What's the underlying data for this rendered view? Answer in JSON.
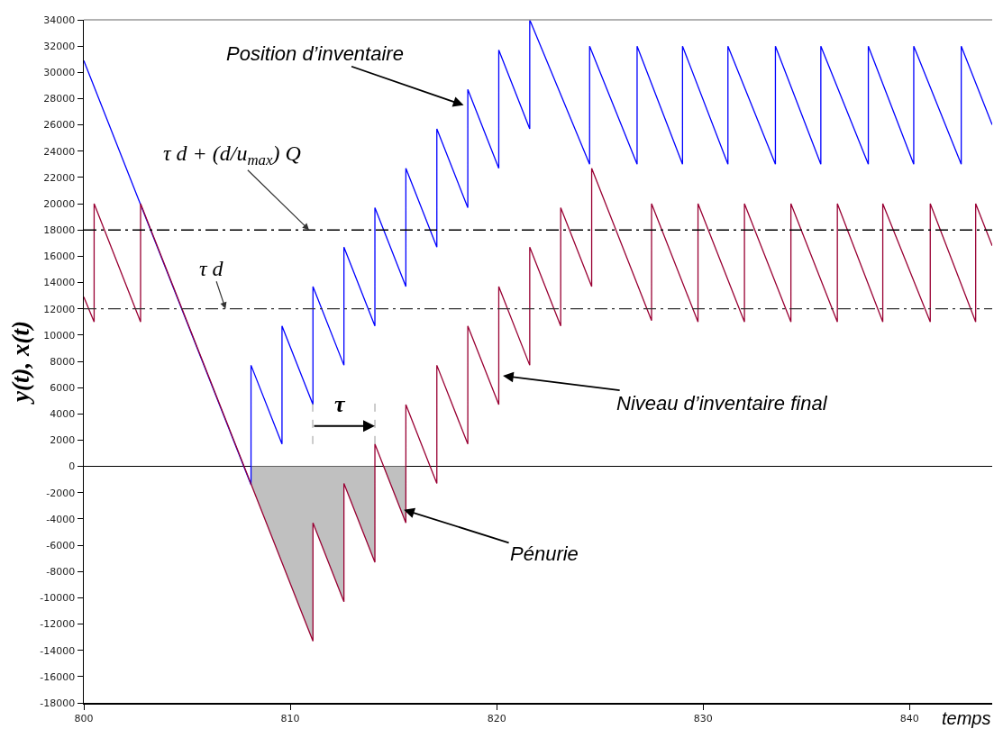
{
  "chart_data": {
    "type": "line",
    "xlabel": "temps",
    "ylabel": "y(t), x(t)",
    "xlim": [
      800,
      844
    ],
    "xticks": [
      800,
      810,
      820,
      830,
      840
    ],
    "ylim": [
      -18000,
      34000
    ],
    "yticks": [
      -18000,
      -16000,
      -14000,
      -12000,
      -10000,
      -8000,
      -6000,
      -4000,
      -2000,
      0,
      2000,
      4000,
      6000,
      8000,
      10000,
      12000,
      14000,
      16000,
      18000,
      20000,
      22000,
      24000,
      26000,
      28000,
      30000,
      32000,
      34000
    ],
    "grid": false,
    "marker": "none",
    "line_style": "solid",
    "series": [
      {
        "type": "area",
        "color": "#c0c0c0",
        "x": [
          808.1,
          811.1,
          811.1,
          812.6,
          812.6,
          814.1,
          814.1,
          814.5,
          815.6,
          815.6
        ],
        "values": [
          -1400,
          -13300,
          -4300,
          -10300,
          -1300,
          -7300,
          0,
          0,
          -4300,
          0
        ]
      },
      {
        "color": "#0000ff",
        "x": [
          800,
          808.1,
          808.1,
          809.6,
          809.6,
          811.1,
          811.1,
          812.6,
          812.6,
          814.1,
          814.1,
          815.6,
          815.6,
          817.1,
          817.1,
          818.6,
          818.6,
          820.1,
          820.1,
          821.6,
          821.6,
          824.5,
          824.5,
          826.8,
          826.8,
          829.0,
          829.0,
          831.2,
          831.2,
          833.5,
          833.5,
          835.7,
          835.7,
          838.0,
          838.0,
          840.2,
          840.2,
          842.5,
          842.5,
          844
        ],
        "values": [
          30900,
          -1400,
          7700,
          1700,
          10700,
          4700,
          13700,
          7700,
          16700,
          10700,
          19700,
          13700,
          22700,
          16700,
          25700,
          19700,
          28700,
          22700,
          31700,
          25700,
          34000,
          23000,
          32000,
          23000,
          32000,
          23000,
          32000,
          23000,
          32000,
          23000,
          32000,
          23000,
          32000,
          23000,
          32000,
          23000,
          32000,
          23000,
          32000,
          26000
        ]
      },
      {
        "color": "#990033",
        "x": [
          800,
          800.5,
          800.5,
          802.75,
          802.75,
          811.1,
          811.1,
          812.6,
          812.6,
          814.1,
          814.1,
          815.6,
          815.6,
          817.1,
          817.1,
          818.6,
          818.6,
          820.1,
          820.1,
          821.6,
          821.6,
          823.1,
          823.1,
          824.6,
          824.6,
          827.5,
          827.5,
          829.75,
          829.75,
          832.0,
          832.0,
          834.25,
          834.25,
          836.5,
          836.5,
          838.7,
          838.7,
          841.0,
          841.0,
          843.2,
          843.2,
          844
        ],
        "values": [
          12900,
          11000,
          20000,
          11000,
          20000,
          -13300,
          -4300,
          -10300,
          -1300,
          -7300,
          1700,
          -4300,
          4700,
          -1300,
          7700,
          1700,
          10700,
          4700,
          13700,
          7700,
          16700,
          10700,
          19700,
          13700,
          22700,
          11100,
          20000,
          11000,
          20000,
          11000,
          20000,
          11000,
          20000,
          11000,
          20000,
          11000,
          20000,
          11000,
          20000,
          11000,
          20000,
          16800
        ]
      }
    ],
    "ref_lines": [
      {
        "axis": "y",
        "value": 18000,
        "label": "τ d + (d/u$_{max}$) Q",
        "color": "#000000",
        "line_style": "dashed"
      },
      {
        "axis": "y",
        "value": 12000,
        "label": "τ d",
        "color": "#333333",
        "line_style": "dashed"
      }
    ],
    "annotations": [
      {
        "text": "τ",
        "x": 814.1,
        "y": 1700
      },
      {
        "text": "Position d’inventaire",
        "x": 818.4,
        "y": 27500
      },
      {
        "text": "Niveau d’inventaire final",
        "x": 820.3,
        "y": 6900
      },
      {
        "text": "Pénurie",
        "x": 815.5,
        "y": -3300
      }
    ]
  }
}
